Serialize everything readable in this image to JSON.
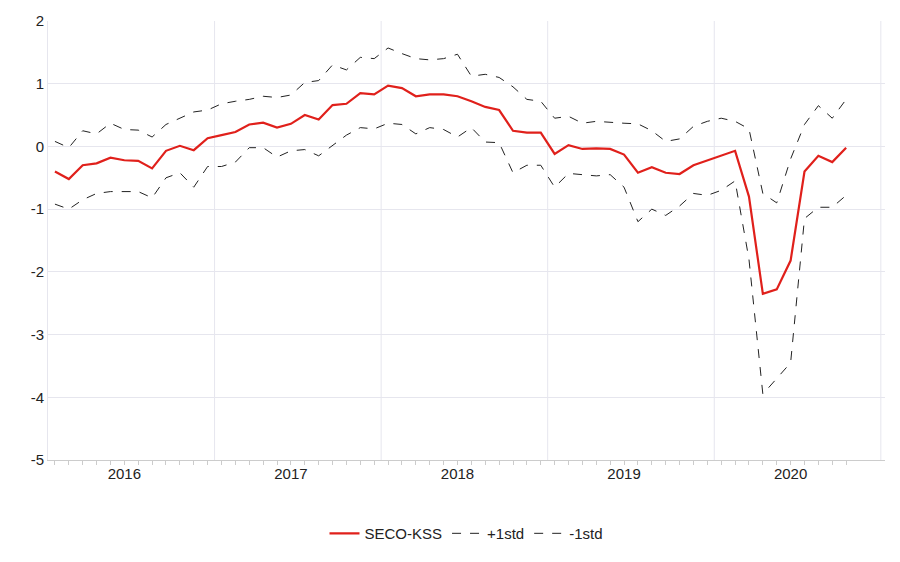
{
  "chart_data": {
    "type": "line",
    "categories": [
      null,
      null,
      null,
      null,
      null,
      "2016",
      null,
      null,
      null,
      null,
      null,
      null,
      null,
      null,
      null,
      null,
      null,
      "2017",
      null,
      null,
      null,
      null,
      null,
      null,
      null,
      null,
      null,
      null,
      null,
      "2018",
      null,
      null,
      null,
      null,
      null,
      null,
      null,
      null,
      null,
      null,
      null,
      "2019",
      null,
      null,
      null,
      null,
      null,
      null,
      null,
      null,
      null,
      null,
      null,
      "2020",
      null,
      null,
      null,
      null
    ],
    "series": [
      {
        "name": "SECO-KSS",
        "color": "#e0201b",
        "line_style": "solid",
        "values": [
          -0.4,
          -0.52,
          -0.3,
          -0.27,
          -0.18,
          -0.22,
          -0.23,
          -0.35,
          -0.07,
          0.01,
          -0.06,
          0.13,
          0.18,
          0.23,
          0.35,
          0.38,
          0.3,
          0.36,
          0.5,
          0.43,
          0.66,
          0.68,
          0.85,
          0.83,
          0.97,
          0.93,
          0.8,
          0.83,
          0.83,
          0.8,
          0.72,
          0.63,
          0.58,
          0.25,
          0.22,
          0.22,
          -0.12,
          0.02,
          -0.04,
          -0.03,
          -0.04,
          -0.13,
          -0.42,
          -0.33,
          -0.42,
          -0.44,
          -0.3,
          -0.22,
          -0.15,
          -0.07,
          -0.8,
          -2.35,
          -2.28,
          -1.82,
          -0.4,
          -0.15,
          -0.25,
          -0.02
        ]
      },
      {
        "name": "+1std",
        "color": "#222222",
        "line_style": "dashed",
        "values": [
          0.08,
          -0.02,
          0.25,
          0.2,
          0.37,
          0.27,
          0.26,
          0.15,
          0.35,
          0.45,
          0.55,
          0.58,
          0.68,
          0.72,
          0.75,
          0.8,
          0.78,
          0.82,
          1.02,
          1.05,
          1.3,
          1.22,
          1.42,
          1.4,
          1.57,
          1.48,
          1.4,
          1.38,
          1.4,
          1.47,
          1.12,
          1.15,
          1.1,
          0.95,
          0.75,
          0.72,
          0.45,
          0.48,
          0.37,
          0.4,
          0.38,
          0.37,
          0.36,
          0.25,
          0.08,
          0.12,
          0.32,
          0.4,
          0.45,
          0.4,
          0.28,
          -0.75,
          -0.9,
          -0.2,
          0.35,
          0.65,
          0.45,
          0.75
        ]
      },
      {
        "name": "-1std",
        "color": "#222222",
        "line_style": "dashed",
        "values": [
          -0.92,
          -1.0,
          -0.85,
          -0.75,
          -0.72,
          -0.72,
          -0.72,
          -0.82,
          -0.5,
          -0.42,
          -0.65,
          -0.32,
          -0.32,
          -0.25,
          -0.02,
          -0.02,
          -0.17,
          -0.07,
          -0.05,
          -0.15,
          0.02,
          0.18,
          0.3,
          0.28,
          0.37,
          0.35,
          0.2,
          0.3,
          0.27,
          0.15,
          0.3,
          0.07,
          0.06,
          -0.42,
          -0.3,
          -0.3,
          -0.65,
          -0.43,
          -0.45,
          -0.47,
          -0.45,
          -0.65,
          -1.2,
          -1.0,
          -1.1,
          -0.95,
          -0.75,
          -0.78,
          -0.7,
          -0.55,
          -1.8,
          -3.95,
          -3.7,
          -3.45,
          -1.15,
          -0.97,
          -0.97,
          -0.78
        ]
      }
    ],
    "ylim": [
      -5,
      2
    ],
    "yticks": [
      -5,
      -4,
      -3,
      -2,
      -1,
      0,
      1,
      2
    ],
    "grid": true,
    "legend": "bottom"
  }
}
